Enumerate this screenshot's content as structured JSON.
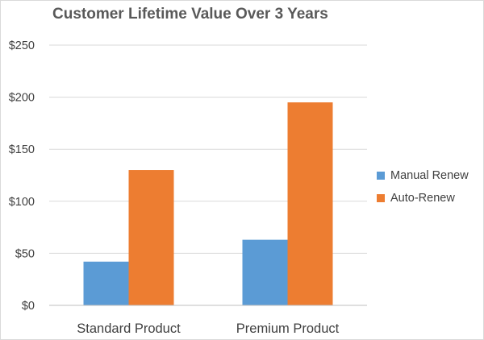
{
  "chart_data": {
    "type": "bar",
    "title": "Customer Lifetime Value Over 3 Years",
    "xlabel": "",
    "ylabel": "",
    "categories": [
      "Standard Product",
      "Premium Product"
    ],
    "series": [
      {
        "name": "Manual Renew",
        "values": [
          42,
          63
        ],
        "color": "#5b9bd5"
      },
      {
        "name": "Auto-Renew",
        "values": [
          130,
          195
        ],
        "color": "#ed7d31"
      }
    ],
    "ylim": [
      0,
      250
    ],
    "yticks": [
      0,
      50,
      100,
      150,
      200,
      250
    ],
    "ytick_labels": [
      "$0",
      "$50",
      "$100",
      "$150",
      "$200",
      "$250"
    ],
    "grid": true,
    "legend_position": "right"
  }
}
